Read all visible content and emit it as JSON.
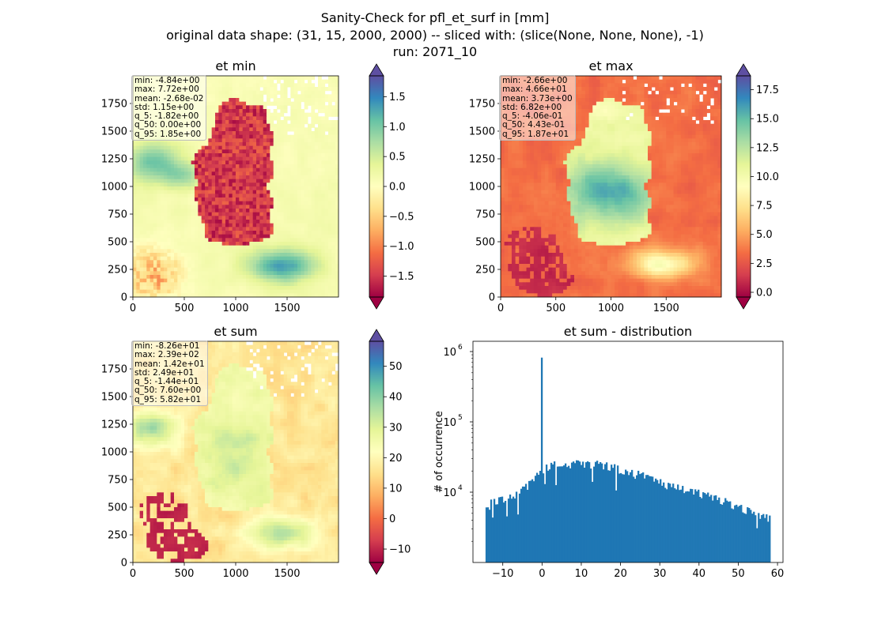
{
  "figure": {
    "title_lines": [
      "Sanity-Check for pfl_et_surf in [mm]",
      "original data shape: (31, 15, 2000, 2000) -- sliced with: (slice(None, None, None), -1)",
      "run: 2071_10"
    ]
  },
  "chart_data": [
    {
      "type": "heatmap",
      "title": "et min",
      "xlim": [
        0,
        2000
      ],
      "ylim": [
        0,
        2000
      ],
      "xticks": [
        "0",
        "500",
        "1000",
        "1500"
      ],
      "yticks": [
        "0",
        "250",
        "500",
        "750",
        "1000",
        "1250",
        "1500",
        "1750"
      ],
      "colormap": "Spectral",
      "colorbar": {
        "vmin": -1.85,
        "vmax": 1.85,
        "extend": "both",
        "ticks": [
          "−1.5",
          "−1.0",
          "−0.5",
          "0.0",
          "0.5",
          "1.0",
          "1.5"
        ]
      },
      "stats": [
        "min: -4.84e+00",
        "max: 7.72e+00",
        "mean: -2.68e-02",
        "std: 1.15e+00",
        "q_5: -1.82e+00",
        "q_50: 0.00e+00",
        "q_95: 1.85e+00"
      ]
    },
    {
      "type": "heatmap",
      "title": "et max",
      "xlim": [
        0,
        2000
      ],
      "ylim": [
        0,
        2000
      ],
      "xticks": [
        "0",
        "500",
        "1000",
        "1500"
      ],
      "yticks": [
        "0",
        "250",
        "500",
        "750",
        "1000",
        "1250",
        "1500",
        "1750"
      ],
      "colormap": "Spectral",
      "colorbar": {
        "vmin": -0.41,
        "vmax": 18.7,
        "extend": "both",
        "ticks": [
          "0.0",
          "2.5",
          "5.0",
          "7.5",
          "10.0",
          "12.5",
          "15.0",
          "17.5"
        ]
      },
      "stats": [
        "min: -2.66e+00",
        "max: 4.66e+01",
        "mean: 3.73e+00",
        "std: 6.82e+00",
        "q_5: -4.06e-01",
        "q_50: 4.43e-01",
        "q_95: 1.87e+01"
      ]
    },
    {
      "type": "heatmap",
      "title": "et sum",
      "xlim": [
        0,
        2000
      ],
      "ylim": [
        0,
        2000
      ],
      "xticks": [
        "0",
        "500",
        "1000",
        "1500"
      ],
      "yticks": [
        "0",
        "250",
        "500",
        "750",
        "1000",
        "1250",
        "1500",
        "1750"
      ],
      "colormap": "Spectral",
      "colorbar": {
        "vmin": -14.4,
        "vmax": 58.2,
        "extend": "both",
        "ticks": [
          "−10",
          "0",
          "10",
          "20",
          "30",
          "40",
          "50"
        ]
      },
      "stats": [
        "min: -8.26e+01",
        "max: 2.39e+02",
        "mean: 1.42e+01",
        "std: 2.49e+01",
        "q_5: -1.44e+01",
        "q_50: 7.60e+00",
        "q_95: 5.82e+01"
      ]
    },
    {
      "type": "bar",
      "title": "et sum - distribution",
      "ylabel": "# of occurrence",
      "yscale": "log",
      "color": "#1f77b4",
      "xlim": [
        -17.6,
        61.4
      ],
      "ylim": [
        1000,
        1400000
      ],
      "xticks": [
        "−10",
        "0",
        "10",
        "20",
        "30",
        "40",
        "50",
        "60"
      ],
      "ytick_exponents": [
        "6",
        "5",
        "4"
      ],
      "x_range": [
        -14.4,
        58.2
      ],
      "knots": [
        [
          -14.4,
          6000
        ],
        [
          -12,
          7500
        ],
        [
          -8,
          9000
        ],
        [
          -5,
          10500
        ],
        [
          -2,
          15000
        ],
        [
          0,
          20000
        ],
        [
          2,
          24000
        ],
        [
          6,
          25500
        ],
        [
          10,
          25000
        ],
        [
          14,
          24500
        ],
        [
          17,
          24000
        ],
        [
          20,
          21000
        ],
        [
          24,
          18000
        ],
        [
          28,
          15000
        ],
        [
          32,
          12500
        ],
        [
          36,
          11000
        ],
        [
          40,
          9500
        ],
        [
          44,
          8500
        ],
        [
          48,
          7000
        ],
        [
          52,
          5500
        ],
        [
          55,
          5000
        ],
        [
          58.2,
          4200
        ]
      ],
      "spike": {
        "x": 0,
        "count": 820000
      }
    }
  ]
}
